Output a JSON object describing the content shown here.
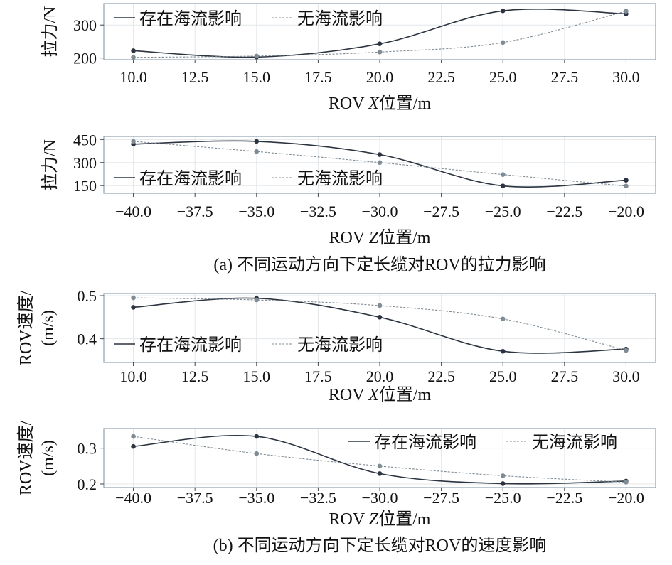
{
  "chart_data": [
    {
      "type": "line",
      "xlabel_prefix": "ROV ",
      "xlabel_var": "X",
      "xlabel_suffix": "位置/m",
      "ylabel": "拉力/N",
      "xlim": [
        8.8,
        31.2
      ],
      "ylim": [
        195,
        365
      ],
      "xticks": [
        10,
        12.5,
        15,
        17.5,
        20,
        22.5,
        25,
        27.5,
        30
      ],
      "xtick_labels": [
        "10.0",
        "12.5",
        "15.0",
        "17.5",
        "20.0",
        "22.5",
        "25.0",
        "27.5",
        "30.0"
      ],
      "yticks": [
        200,
        300
      ],
      "ytick_labels": [
        "200",
        "300"
      ],
      "legend_position": "top-left",
      "series": [
        {
          "name": "存在海流影响",
          "style": "solid",
          "color": "#2b3440",
          "x": [
            10,
            15,
            20,
            25,
            30
          ],
          "y": [
            222,
            203,
            243,
            343,
            334
          ]
        },
        {
          "name": "无海流影响",
          "style": "dashed",
          "color": "#7f8c95",
          "x": [
            10,
            15,
            20,
            25,
            30
          ],
          "y": [
            202,
            206,
            218,
            247,
            342
          ]
        }
      ]
    },
    {
      "type": "line",
      "xlabel_prefix": "ROV ",
      "xlabel_var": "Z",
      "xlabel_suffix": "位置/m",
      "ylabel": "拉力/N",
      "caption": "(a) 不同运动方向下定长缆对ROV的拉力影响",
      "xlim": [
        -41.2,
        -18.8
      ],
      "ylim": [
        100,
        470
      ],
      "xticks": [
        -40,
        -37.5,
        -35,
        -32.5,
        -30,
        -27.5,
        -25,
        -22.5,
        -20
      ],
      "xtick_labels": [
        "−40.0",
        "−37.5",
        "−35.0",
        "−32.5",
        "−30.0",
        "−27.5",
        "−25.0",
        "−22.5",
        "−20.0"
      ],
      "yticks": [
        150,
        300,
        450
      ],
      "ytick_labels": [
        "150",
        "300",
        "450"
      ],
      "legend_position": "bottom-left",
      "series": [
        {
          "name": "存在海流影响",
          "style": "solid",
          "color": "#2b3440",
          "x": [
            -40,
            -35,
            -30,
            -25,
            -20
          ],
          "y": [
            420,
            438,
            352,
            148,
            185
          ]
        },
        {
          "name": "无海流影响",
          "style": "dashed",
          "color": "#7f8c95",
          "x": [
            -40,
            -35,
            -30,
            -25,
            -20
          ],
          "y": [
            438,
            372,
            300,
            222,
            147
          ]
        }
      ]
    },
    {
      "type": "line",
      "xlabel_prefix": "ROV ",
      "xlabel_var": "X",
      "xlabel_suffix": "位置/m",
      "ylabel_line1": "ROV速度/",
      "ylabel_line2": "(m/s)",
      "xlim": [
        8.8,
        31.2
      ],
      "ylim": [
        0.345,
        0.505
      ],
      "xticks": [
        10,
        12.5,
        15,
        17.5,
        20,
        22.5,
        25,
        27.5,
        30
      ],
      "xtick_labels": [
        "10.0",
        "12.5",
        "15.0",
        "17.5",
        "20.0",
        "22.5",
        "25.0",
        "27.5",
        "30.0"
      ],
      "yticks": [
        0.4,
        0.5
      ],
      "ytick_labels": [
        "0.4",
        "0.5"
      ],
      "legend_position": "bottom-left",
      "series": [
        {
          "name": "存在海流影响",
          "style": "solid",
          "color": "#2b3440",
          "x": [
            10,
            15,
            20,
            25,
            30
          ],
          "y": [
            0.473,
            0.494,
            0.45,
            0.371,
            0.376
          ]
        },
        {
          "name": "无海流影响",
          "style": "dashed",
          "color": "#7f8c95",
          "x": [
            10,
            15,
            20,
            25,
            30
          ],
          "y": [
            0.495,
            0.49,
            0.477,
            0.446,
            0.373
          ]
        }
      ]
    },
    {
      "type": "line",
      "xlabel_prefix": "ROV ",
      "xlabel_var": "Z",
      "xlabel_suffix": "位置/m",
      "ylabel_line1": "ROV速度/",
      "ylabel_line2": "(m/s)",
      "caption": "(b) 不同运动方向下定长缆对ROV的速度影响",
      "xlim": [
        -41.2,
        -18.8
      ],
      "ylim": [
        0.19,
        0.355
      ],
      "xticks": [
        -40,
        -37.5,
        -35,
        -32.5,
        -30,
        -27.5,
        -25,
        -22.5,
        -20
      ],
      "xtick_labels": [
        "−40.0",
        "−37.5",
        "−35.0",
        "−32.5",
        "−30.0",
        "−27.5",
        "−25.0",
        "−22.5",
        "−20.0"
      ],
      "yticks": [
        0.2,
        0.3
      ],
      "ytick_labels": [
        "0.2",
        "0.3"
      ],
      "legend_position": "top-right",
      "series": [
        {
          "name": "存在海流影响",
          "style": "solid",
          "color": "#2b3440",
          "x": [
            -40,
            -35,
            -30,
            -25,
            -20
          ],
          "y": [
            0.305,
            0.333,
            0.229,
            0.201,
            0.208
          ]
        },
        {
          "name": "无海流影响",
          "style": "dashed",
          "color": "#7f8c95",
          "x": [
            -40,
            -35,
            -30,
            -25,
            -20
          ],
          "y": [
            0.333,
            0.285,
            0.25,
            0.223,
            0.205
          ]
        }
      ]
    }
  ]
}
